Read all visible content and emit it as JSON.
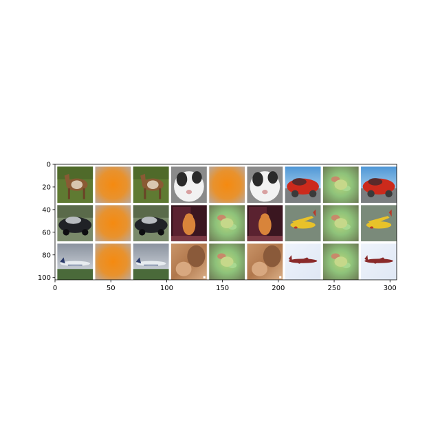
{
  "chart_data": {
    "type": "image-grid",
    "title": "",
    "xlabel": "",
    "ylabel": "",
    "xlim": [
      0,
      306
    ],
    "ylim": [
      102,
      0
    ],
    "image_extent": {
      "width": 306,
      "height": 102
    },
    "grid": false,
    "x_ticks": [
      {
        "value": 0,
        "label": "0"
      },
      {
        "value": 50,
        "label": "50"
      },
      {
        "value": 100,
        "label": "100"
      },
      {
        "value": 150,
        "label": "150"
      },
      {
        "value": 200,
        "label": "200"
      },
      {
        "value": 250,
        "label": "250"
      },
      {
        "value": 300,
        "label": "300"
      }
    ],
    "y_ticks": [
      {
        "value": 0,
        "label": "0"
      },
      {
        "value": 20,
        "label": "20"
      },
      {
        "value": 40,
        "label": "40"
      },
      {
        "value": 60,
        "label": "60"
      },
      {
        "value": 80,
        "label": "80"
      },
      {
        "value": 100,
        "label": "100"
      }
    ],
    "grid_rows": 3,
    "grid_cols": 9,
    "tiles": [
      {
        "row": 0,
        "col": 0,
        "subject": "horse",
        "colors": [
          "#5f7a32",
          "#8a5a34",
          "#d9c7b0"
        ]
      },
      {
        "row": 0,
        "col": 1,
        "subject": "orange-noise",
        "colors": [
          "#f08a1e",
          "#c9a27a",
          "#b8aaa0"
        ]
      },
      {
        "row": 0,
        "col": 2,
        "subject": "horse",
        "colors": [
          "#5f7a32",
          "#8a5a34",
          "#d9c7b0"
        ]
      },
      {
        "row": 0,
        "col": 3,
        "subject": "cat",
        "colors": [
          "#8a8a8a",
          "#f2f2f2",
          "#2a2a2a"
        ]
      },
      {
        "row": 0,
        "col": 4,
        "subject": "orange-noise",
        "colors": [
          "#f08a1e",
          "#c9a27a",
          "#b8aaa0"
        ]
      },
      {
        "row": 0,
        "col": 5,
        "subject": "cat",
        "colors": [
          "#8a8a8a",
          "#f2f2f2",
          "#2a2a2a"
        ]
      },
      {
        "row": 0,
        "col": 6,
        "subject": "red-car",
        "colors": [
          "#5aa0d8",
          "#cc2a1c",
          "#3a3a3a"
        ]
      },
      {
        "row": 0,
        "col": 7,
        "subject": "green-noise",
        "colors": [
          "#7a8a5a",
          "#9ed07a",
          "#c47a5a"
        ]
      },
      {
        "row": 0,
        "col": 8,
        "subject": "red-car",
        "colors": [
          "#5aa0d8",
          "#cc2a1c",
          "#3a3a3a"
        ]
      },
      {
        "row": 1,
        "col": 0,
        "subject": "black-car",
        "colors": [
          "#7a8a6a",
          "#202226",
          "#b8bcc0"
        ]
      },
      {
        "row": 1,
        "col": 1,
        "subject": "orange-noise",
        "colors": [
          "#f08a1e",
          "#c9a27a",
          "#b8aaa0"
        ]
      },
      {
        "row": 1,
        "col": 2,
        "subject": "black-car",
        "colors": [
          "#7a8a6a",
          "#202226",
          "#b8bcc0"
        ]
      },
      {
        "row": 1,
        "col": 3,
        "subject": "cat-in-window",
        "colors": [
          "#3a1620",
          "#d8843a",
          "#7a3a44"
        ]
      },
      {
        "row": 1,
        "col": 4,
        "subject": "green-noise",
        "colors": [
          "#7a8a5a",
          "#9ed07a",
          "#c47a5a"
        ]
      },
      {
        "row": 1,
        "col": 5,
        "subject": "cat-in-window",
        "colors": [
          "#3a1620",
          "#d8843a",
          "#7a3a44"
        ]
      },
      {
        "row": 1,
        "col": 6,
        "subject": "yellow-plane",
        "colors": [
          "#7a8a7a",
          "#e8c22a",
          "#b83a2a"
        ]
      },
      {
        "row": 1,
        "col": 7,
        "subject": "green-noise",
        "colors": [
          "#7a8a5a",
          "#9ed07a",
          "#c47a5a"
        ]
      },
      {
        "row": 1,
        "col": 8,
        "subject": "yellow-plane",
        "colors": [
          "#7a8a7a",
          "#e8c22a",
          "#b83a2a"
        ]
      },
      {
        "row": 2,
        "col": 0,
        "subject": "airliner",
        "colors": [
          "#9aa0a8",
          "#e8ecf0",
          "#4a6a3a"
        ]
      },
      {
        "row": 2,
        "col": 1,
        "subject": "orange-noise",
        "colors": [
          "#f08a1e",
          "#c9a27a",
          "#b8aaa0"
        ]
      },
      {
        "row": 2,
        "col": 2,
        "subject": "airliner",
        "colors": [
          "#9aa0a8",
          "#e8ecf0",
          "#4a6a3a"
        ]
      },
      {
        "row": 2,
        "col": 3,
        "subject": "cat-fur",
        "colors": [
          "#b07a50",
          "#d8a880",
          "#8a5a3a"
        ]
      },
      {
        "row": 2,
        "col": 4,
        "subject": "green-noise",
        "colors": [
          "#7a8a5a",
          "#9ed07a",
          "#c47a5a"
        ]
      },
      {
        "row": 2,
        "col": 5,
        "subject": "cat-fur",
        "colors": [
          "#b07a50",
          "#d8a880",
          "#8a5a3a"
        ]
      },
      {
        "row": 2,
        "col": 6,
        "subject": "red-plane",
        "colors": [
          "#e8eef8",
          "#8a2a2a",
          "#c8d0e0"
        ]
      },
      {
        "row": 2,
        "col": 7,
        "subject": "green-noise",
        "colors": [
          "#7a8a5a",
          "#9ed07a",
          "#c47a5a"
        ]
      },
      {
        "row": 2,
        "col": 8,
        "subject": "red-plane",
        "colors": [
          "#e8eef8",
          "#8a2a2a",
          "#c8d0e0"
        ]
      }
    ]
  }
}
